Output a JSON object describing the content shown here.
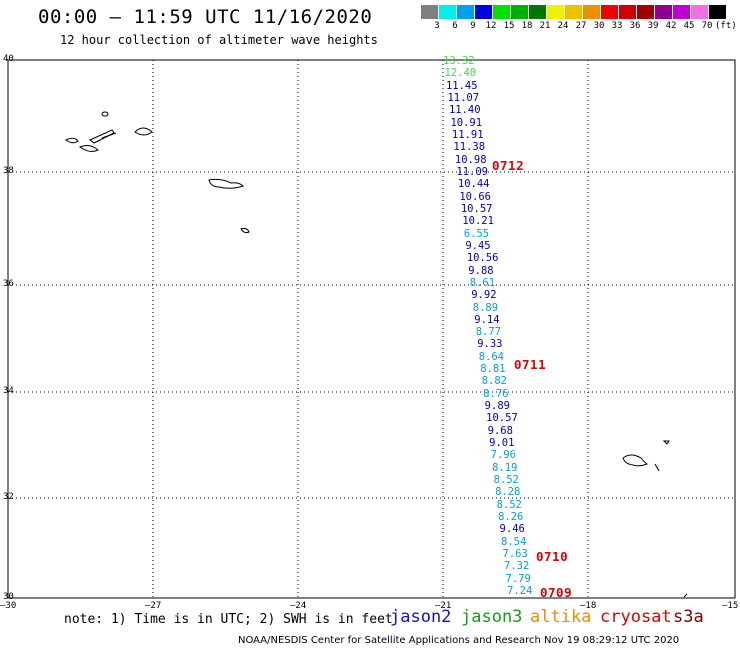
{
  "header": {
    "title": "00:00 – 11:59 UTC 11/16/2020",
    "subtitle": "12 hour collection of altimeter wave heights"
  },
  "colorbar": {
    "colors": [
      "#7f7f7f",
      "#00f0f0",
      "#00a0f0",
      "#0000e0",
      "#00e000",
      "#00b000",
      "#007800",
      "#f0f000",
      "#f0c000",
      "#f09000",
      "#f00000",
      "#d00000",
      "#a00000",
      "#900090",
      "#c000d0",
      "#f070e0",
      "#000000"
    ],
    "labels": [
      "3",
      "6",
      "9",
      "12",
      "15",
      "18",
      "21",
      "24",
      "27",
      "30",
      "33",
      "36",
      "39",
      "42",
      "45",
      "70",
      "(ft)"
    ]
  },
  "axes": {
    "y_ticks": [
      "40",
      "38",
      "36",
      "34",
      "32",
      "30"
    ],
    "x_ticks": [
      "–30",
      "–27",
      "–24",
      "–21",
      "–18",
      "–15"
    ]
  },
  "track": {
    "heights": [
      {
        "v": "13.32",
        "c": "#40e040"
      },
      {
        "v": "12.40",
        "c": "#40e040"
      },
      {
        "v": "11.45",
        "c": "#0000c0"
      },
      {
        "v": "11.07",
        "c": "#0000c0"
      },
      {
        "v": "11.40",
        "c": "#0000c0"
      },
      {
        "v": "10.91",
        "c": "#0000c0"
      },
      {
        "v": "11.91",
        "c": "#0000c0"
      },
      {
        "v": "11.38",
        "c": "#0000c0"
      },
      {
        "v": "10.98",
        "c": "#0000c0"
      },
      {
        "v": "11.09",
        "c": "#0000c0"
      },
      {
        "v": "10.44",
        "c": "#0000c0"
      },
      {
        "v": "10.66",
        "c": "#0000c0"
      },
      {
        "v": "10.57",
        "c": "#0000c0"
      },
      {
        "v": "10.21",
        "c": "#0000c0"
      },
      {
        "v": "6.55",
        "c": "#00a0e0"
      },
      {
        "v": "9.45",
        "c": "#0000c0"
      },
      {
        "v": "10.56",
        "c": "#0000c0"
      },
      {
        "v": "9.88",
        "c": "#0000c0"
      },
      {
        "v": "8.61",
        "c": "#00a0e0"
      },
      {
        "v": "9.92",
        "c": "#0000c0"
      },
      {
        "v": "8.89",
        "c": "#00a0e0"
      },
      {
        "v": "9.14",
        "c": "#0000c0"
      },
      {
        "v": "8.77",
        "c": "#00a0e0"
      },
      {
        "v": "9.33",
        "c": "#0000c0"
      },
      {
        "v": "8.64",
        "c": "#00a0e0"
      },
      {
        "v": "8.81",
        "c": "#00a0e0"
      },
      {
        "v": "8.82",
        "c": "#00a0e0"
      },
      {
        "v": "8.76",
        "c": "#00a0e0"
      },
      {
        "v": "9.89",
        "c": "#0000c0"
      },
      {
        "v": "10.57",
        "c": "#0000c0"
      },
      {
        "v": "9.68",
        "c": "#0000c0"
      },
      {
        "v": "9.01",
        "c": "#0000c0"
      },
      {
        "v": "7.96",
        "c": "#00a0e0"
      },
      {
        "v": "8.19",
        "c": "#00a0e0"
      },
      {
        "v": "8.52",
        "c": "#00a0e0"
      },
      {
        "v": "8.28",
        "c": "#00a0e0"
      },
      {
        "v": "8.52",
        "c": "#00a0e0"
      },
      {
        "v": "8.26",
        "c": "#00a0e0"
      },
      {
        "v": "9.46",
        "c": "#0000c0"
      },
      {
        "v": "8.54",
        "c": "#00a0e0"
      },
      {
        "v": "7.63",
        "c": "#00a0e0"
      },
      {
        "v": "7.32",
        "c": "#00a0e0"
      },
      {
        "v": "7.79",
        "c": "#00a0e0"
      },
      {
        "v": "7.24",
        "c": "#00a0e0"
      }
    ],
    "time_labels": [
      "0712",
      "0711",
      "0710",
      "0709"
    ]
  },
  "legend": {
    "note": "note: 1) Time is in UTC; 2) SWH is in feet",
    "satellites": [
      {
        "name": "jason2",
        "color": "#1010d0"
      },
      {
        "name": "jason3",
        "color": "#10a010"
      },
      {
        "name": "altika",
        "color": "#f08c00"
      },
      {
        "name": "cryosat",
        "color": "#e00000"
      },
      {
        "name": "s3a",
        "color": "#800000"
      }
    ]
  },
  "footer": {
    "text": "NOAA/NESDIS Center for Satellite Applications and Research   Nov 19 08:29:12 UTC 2020"
  }
}
